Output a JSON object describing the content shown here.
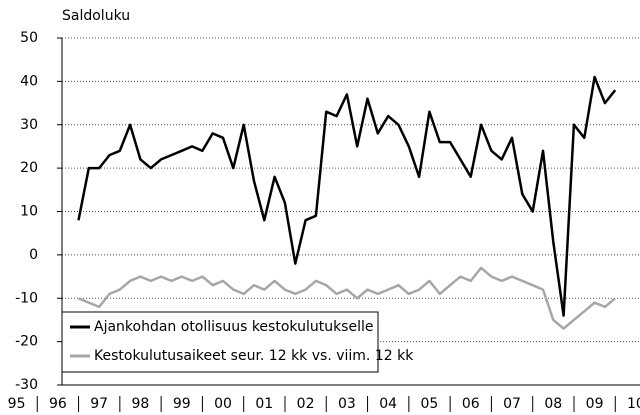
{
  "chart_data": {
    "type": "line",
    "y_label": "Saldoluku",
    "x": [
      1997.0,
      1997.25,
      1997.5,
      1997.75,
      1998.0,
      1998.25,
      1998.5,
      1998.75,
      1999.0,
      1999.25,
      1999.5,
      1999.75,
      2000.0,
      2000.25,
      2000.5,
      2000.75,
      2001.0,
      2001.25,
      2001.5,
      2001.75,
      2002.0,
      2002.25,
      2002.5,
      2002.75,
      2003.0,
      2003.25,
      2003.5,
      2003.75,
      2004.0,
      2004.25,
      2004.5,
      2004.75,
      2005.0,
      2005.25,
      2005.5,
      2005.75,
      2006.0,
      2006.25,
      2006.5,
      2006.75,
      2007.0,
      2007.25,
      2007.5,
      2007.75,
      2008.0,
      2008.25,
      2008.5,
      2008.75,
      2009.0,
      2009.25,
      2009.5,
      2009.75,
      2010.0
    ],
    "series": [
      {
        "name": "Ajankohdan otollisuus kestokulutukselle",
        "color": "#000000",
        "values": [
          8,
          20,
          20,
          23,
          24,
          30,
          22,
          20,
          22,
          23,
          24,
          25,
          24,
          28,
          27,
          20,
          30,
          17,
          8,
          18,
          12,
          -2,
          8,
          9,
          33,
          32,
          37,
          25,
          36,
          28,
          32,
          30,
          25,
          18,
          33,
          26,
          26,
          22,
          18,
          30,
          24,
          22,
          27,
          14,
          10,
          24,
          3,
          -14,
          30,
          27,
          41,
          35,
          38
        ]
      },
      {
        "name": "Kestokulutusaikeet seur. 12 kk vs. viim. 12 kk",
        "color": "#a6a6a6",
        "values": [
          -10,
          -11,
          -12,
          -9,
          -8,
          -6,
          -5,
          -6,
          -5,
          -6,
          -5,
          -6,
          -5,
          -7,
          -6,
          -8,
          -9,
          -7,
          -8,
          -6,
          -8,
          -9,
          -8,
          -6,
          -7,
          -9,
          -8,
          -10,
          -8,
          -9,
          -8,
          -7,
          -9,
          -8,
          -6,
          -9,
          -7,
          -5,
          -6,
          -3,
          -5,
          -6,
          -5,
          -6,
          -7,
          -8,
          -15,
          -17,
          -15,
          -13,
          -11,
          -12,
          -10
        ]
      }
    ],
    "xlim": [
      1996.6,
      2010.6
    ],
    "xticks": [
      {
        "value": 1995.5,
        "label": "95"
      },
      {
        "value": 1996.5,
        "label": "96"
      },
      {
        "value": 1997.5,
        "label": "97"
      },
      {
        "value": 1998.5,
        "label": "98"
      },
      {
        "value": 1999.5,
        "label": "99"
      },
      {
        "value": 2000.5,
        "label": "00"
      },
      {
        "value": 2001.5,
        "label": "01"
      },
      {
        "value": 2002.5,
        "label": "02"
      },
      {
        "value": 2003.5,
        "label": "03"
      },
      {
        "value": 2004.5,
        "label": "04"
      },
      {
        "value": 2005.5,
        "label": "05"
      },
      {
        "value": 2006.5,
        "label": "06"
      },
      {
        "value": 2007.5,
        "label": "07"
      },
      {
        "value": 2008.5,
        "label": "08"
      },
      {
        "value": 2009.5,
        "label": "09"
      },
      {
        "value": 2010.5,
        "label": "10"
      }
    ],
    "ylim": [
      -30,
      50
    ],
    "yticks": [
      -30,
      -20,
      -10,
      0,
      10,
      20,
      30,
      40,
      50
    ],
    "grid": true,
    "legend": "lower left"
  }
}
